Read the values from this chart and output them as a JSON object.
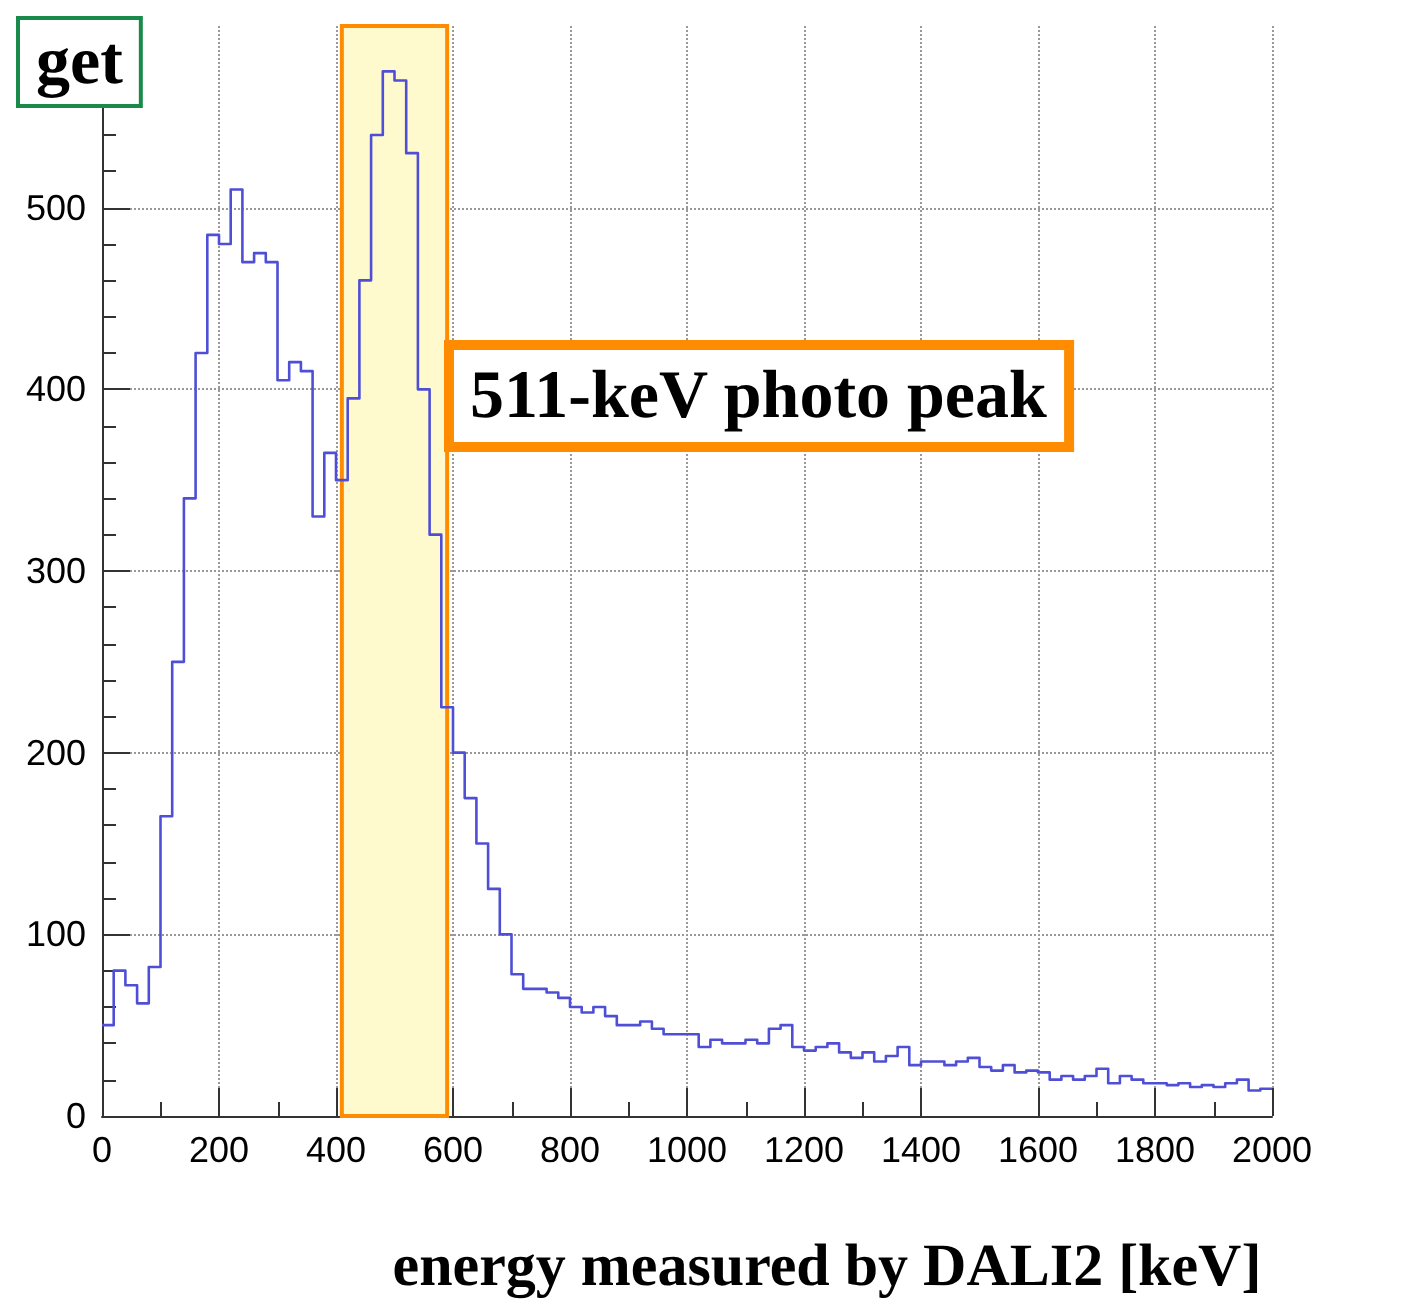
{
  "chart_data": {
    "type": "histogram",
    "xlabel": "energy measured by DALI2 [keV]",
    "annotations": [
      "get",
      "511-keV photo peak"
    ],
    "bins": [
      0,
      20,
      40,
      60,
      80,
      100,
      120,
      140,
      160,
      180,
      200,
      220,
      240,
      260,
      280,
      300,
      320,
      340,
      360,
      380,
      400,
      420,
      440,
      460,
      480,
      500,
      520,
      540,
      560,
      580,
      600,
      620,
      640,
      660,
      680,
      700,
      720,
      740,
      760,
      780,
      800,
      820,
      840,
      860,
      880,
      900,
      920,
      940,
      960,
      980,
      1000,
      1020,
      1040,
      1060,
      1080,
      1100,
      1120,
      1140,
      1160,
      1180,
      1200,
      1220,
      1240,
      1260,
      1280,
      1300,
      1320,
      1340,
      1360,
      1380,
      1400,
      1420,
      1440,
      1460,
      1480,
      1500,
      1520,
      1540,
      1560,
      1580,
      1600,
      1620,
      1640,
      1660,
      1680,
      1700,
      1720,
      1740,
      1760,
      1780,
      1800,
      1820,
      1840,
      1860,
      1880,
      1900,
      1920,
      1940,
      1960,
      1980,
      2000
    ],
    "values": [
      50,
      80,
      72,
      62,
      82,
      165,
      250,
      340,
      420,
      485,
      480,
      510,
      470,
      475,
      470,
      405,
      415,
      410,
      330,
      365,
      350,
      395,
      460,
      540,
      575,
      570,
      530,
      400,
      320,
      225,
      200,
      175,
      150,
      125,
      100,
      78,
      70,
      70,
      68,
      65,
      60,
      57,
      60,
      55,
      50,
      50,
      52,
      48,
      45,
      45,
      45,
      38,
      42,
      40,
      40,
      42,
      40,
      48,
      50,
      38,
      36,
      38,
      40,
      35,
      32,
      35,
      30,
      33,
      38,
      28,
      30,
      30,
      28,
      30,
      32,
      27,
      25,
      28,
      24,
      25,
      24,
      20,
      22,
      20,
      22,
      26,
      18,
      22,
      20,
      18,
      18,
      17,
      18,
      16,
      17,
      16,
      18,
      20,
      14,
      15
    ],
    "color": "#4f4fd6",
    "xlim": [
      0,
      2000
    ],
    "xticks": [
      0,
      200,
      400,
      600,
      800,
      1000,
      1200,
      1400,
      1600,
      1800,
      2000
    ],
    "ylim": [
      0,
      600
    ],
    "yticks": [
      0,
      100,
      200,
      300,
      400,
      500
    ],
    "grid": true,
    "bands": [
      {
        "axis": "x",
        "from": 410,
        "to": 590,
        "color": "#fffacd"
      }
    ]
  }
}
